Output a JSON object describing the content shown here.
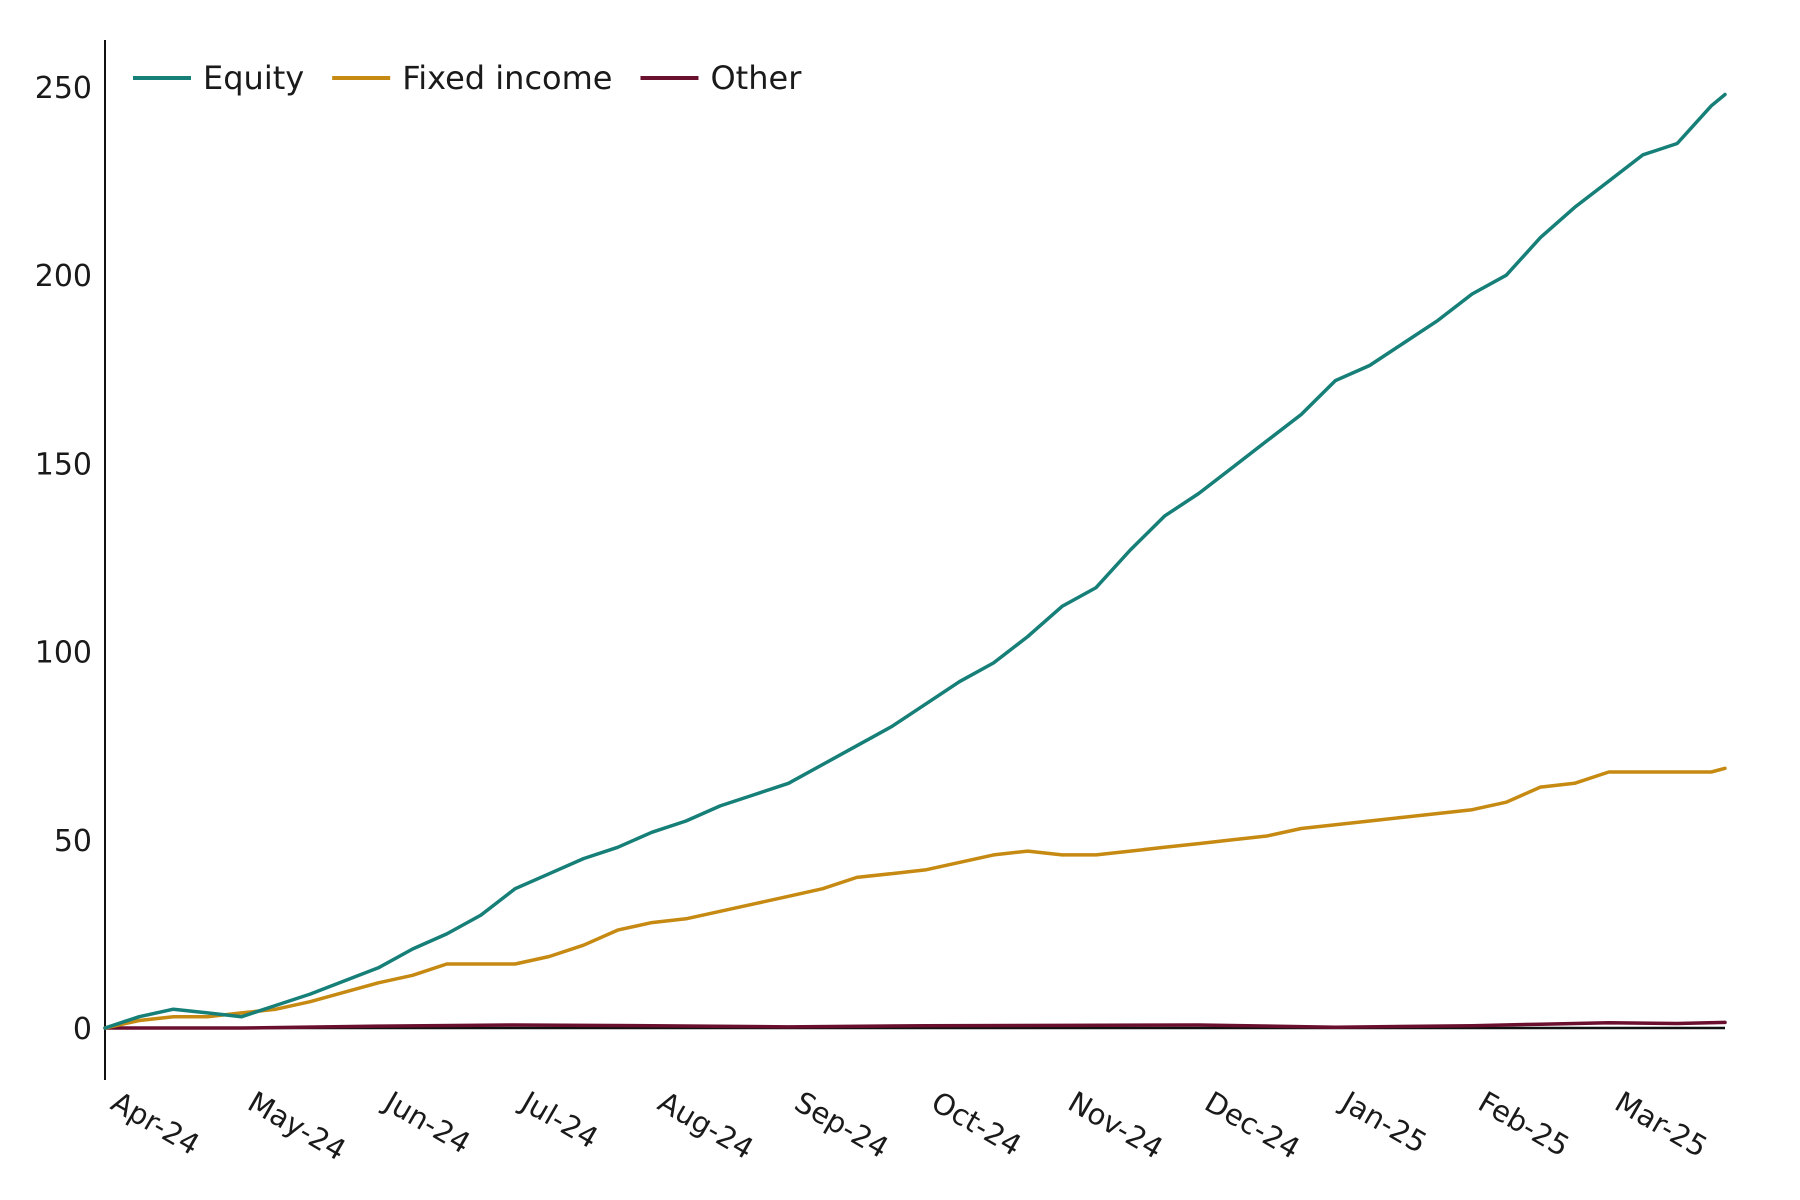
{
  "chart_data": {
    "type": "line",
    "title": "",
    "xlabel": "",
    "ylabel": "",
    "ylim": [
      -14,
      262
    ],
    "yticks": [
      0,
      50,
      100,
      150,
      200,
      250
    ],
    "x_tick_labels": [
      "Apr-24",
      "May-24",
      "Jun-24",
      "Jul-24",
      "Aug-24",
      "Sep-24",
      "Oct-24",
      "Nov-24",
      "Dec-24",
      "Jan-25",
      "Feb-25",
      "Mar-25"
    ],
    "x_range": [
      0,
      11.85
    ],
    "grid": false,
    "legend_position": "top-left",
    "series": [
      {
        "name": "Equity",
        "color": "#167f78",
        "x": [
          0,
          0.25,
          0.5,
          0.75,
          1.0,
          1.25,
          1.5,
          2.0,
          2.25,
          2.5,
          2.75,
          3.0,
          3.25,
          3.5,
          3.75,
          4.0,
          4.25,
          4.5,
          4.75,
          5.0,
          5.25,
          5.5,
          5.75,
          6.0,
          6.25,
          6.5,
          6.75,
          7.0,
          7.25,
          7.5,
          7.75,
          8.0,
          8.25,
          8.5,
          8.75,
          9.0,
          9.25,
          9.5,
          9.75,
          10.0,
          10.25,
          10.5,
          10.75,
          11.0,
          11.25,
          11.5,
          11.75,
          11.85
        ],
        "values": [
          0,
          3,
          5,
          4,
          3,
          6,
          9,
          16,
          21,
          25,
          30,
          37,
          41,
          45,
          48,
          52,
          55,
          59,
          62,
          65,
          70,
          75,
          80,
          86,
          92,
          97,
          104,
          112,
          117,
          127,
          136,
          142,
          149,
          156,
          163,
          172,
          176,
          182,
          188,
          195,
          200,
          210,
          218,
          225,
          232,
          235,
          245,
          248
        ]
      },
      {
        "name": "Fixed income",
        "color": "#c68a13",
        "x": [
          0,
          0.25,
          0.5,
          0.75,
          1.0,
          1.25,
          1.5,
          2.0,
          2.25,
          2.5,
          2.75,
          3.0,
          3.25,
          3.5,
          3.75,
          4.0,
          4.25,
          4.5,
          4.75,
          5.0,
          5.25,
          5.5,
          5.75,
          6.0,
          6.25,
          6.5,
          6.75,
          7.0,
          7.25,
          7.5,
          7.75,
          8.0,
          8.25,
          8.5,
          8.75,
          9.0,
          9.25,
          9.5,
          9.75,
          10.0,
          10.25,
          10.5,
          10.75,
          11.0,
          11.25,
          11.5,
          11.75,
          11.85
        ],
        "values": [
          0,
          2,
          3,
          3,
          4,
          5,
          7,
          12,
          14,
          17,
          17,
          17,
          19,
          22,
          26,
          28,
          29,
          31,
          33,
          35,
          37,
          40,
          41,
          42,
          44,
          46,
          47,
          46,
          46,
          47,
          48,
          49,
          50,
          51,
          53,
          54,
          55,
          56,
          57,
          58,
          60,
          64,
          65,
          68,
          68,
          68,
          68,
          69
        ]
      },
      {
        "name": "Other",
        "color": "#6b0f2e",
        "x": [
          0,
          1.0,
          2.0,
          3.0,
          4.0,
          5.0,
          6.0,
          7.0,
          8.0,
          9.0,
          10.0,
          10.5,
          11.0,
          11.5,
          11.85
        ],
        "values": [
          0,
          0,
          0.5,
          0.8,
          0.6,
          0.3,
          0.6,
          0.7,
          0.8,
          0.2,
          0.6,
          1.0,
          1.4,
          1.2,
          1.5
        ]
      }
    ],
    "zero_line_color": "#111111",
    "axis_color": "#111111"
  }
}
